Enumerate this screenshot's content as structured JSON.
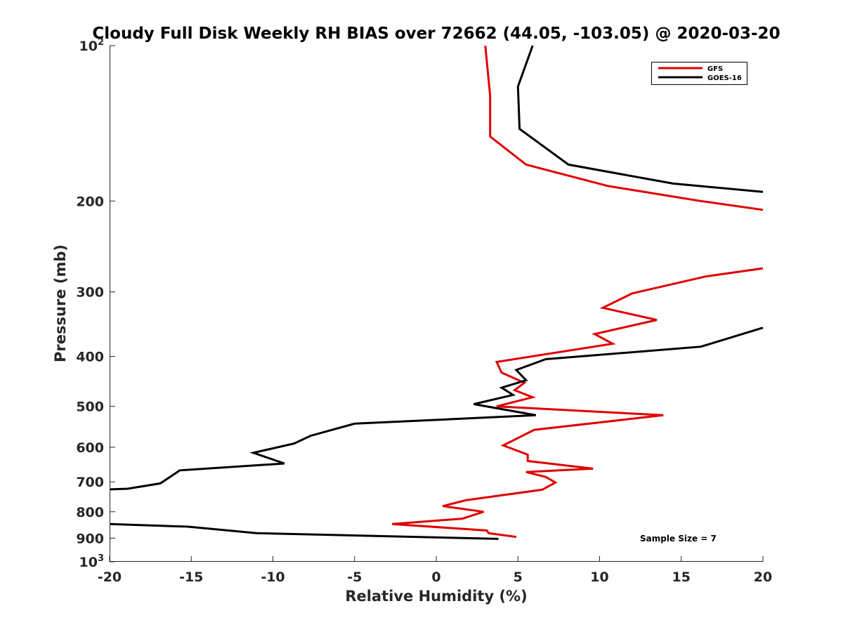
{
  "chart_data": {
    "type": "line",
    "title": "Cloudy Full Disk Weekly RH BIAS over 72662 (44.05, -103.05) @ 2020-03-20",
    "xlabel": "Relative Humidity (%)",
    "ylabel": "Pressure (mb)",
    "xlim": [
      -20,
      20
    ],
    "ylim": [
      100,
      1000
    ],
    "y_scale": "log",
    "y_reversed": true,
    "x_ticks": [
      "-20",
      "-15",
      "-10",
      "-5",
      "0",
      "5",
      "10",
      "15",
      "20"
    ],
    "y_ticks": [
      {
        "base": "10",
        "exp": "2"
      },
      {
        "base": "200",
        "exp": ""
      },
      {
        "base": "300",
        "exp": ""
      },
      {
        "base": "400",
        "exp": ""
      },
      {
        "base": "500",
        "exp": ""
      },
      {
        "base": "600",
        "exp": ""
      },
      {
        "base": "700",
        "exp": ""
      },
      {
        "base": "800",
        "exp": ""
      },
      {
        "base": "900",
        "exp": ""
      },
      {
        "base": "10",
        "exp": "3"
      }
    ],
    "grid": false,
    "legend_position": "top-right",
    "annotation": "Sample Size = 7",
    "series": [
      {
        "name": "GFS",
        "color": "#e00000",
        "points": [
          [
            3.0,
            100
          ],
          [
            3.3,
            125
          ],
          [
            3.3,
            150
          ],
          [
            5.5,
            170
          ],
          [
            10.5,
            187
          ],
          [
            16.2,
            200
          ],
          [
            20.0,
            208
          ],
          [
            null,
            null
          ],
          [
            20.0,
            270
          ],
          [
            16.5,
            280
          ],
          [
            12.0,
            302
          ],
          [
            10.2,
            322
          ],
          [
            13.5,
            340
          ],
          [
            9.7,
            362
          ],
          [
            10.8,
            378
          ],
          [
            3.7,
            410
          ],
          [
            4.0,
            430
          ],
          [
            5.4,
            450
          ],
          [
            4.8,
            465
          ],
          [
            5.9,
            480
          ],
          [
            3.7,
            500
          ],
          [
            13.9,
            520
          ],
          [
            6.0,
            555
          ],
          [
            4.1,
            595
          ],
          [
            5.6,
            620
          ],
          [
            5.6,
            638
          ],
          [
            9.6,
            660
          ],
          [
            5.5,
            670
          ],
          [
            6.7,
            685
          ],
          [
            7.3,
            702
          ],
          [
            6.5,
            725
          ],
          [
            1.8,
            760
          ],
          [
            0.4,
            780
          ],
          [
            2.9,
            800
          ],
          [
            1.6,
            825
          ],
          [
            -2.7,
            845
          ],
          [
            3.1,
            870
          ],
          [
            3.2,
            880
          ],
          [
            4.9,
            895
          ]
        ]
      },
      {
        "name": "GOES-16",
        "color": "#000000",
        "points": [
          [
            5.9,
            100
          ],
          [
            5.0,
            120
          ],
          [
            5.1,
            145
          ],
          [
            8.1,
            170
          ],
          [
            14.5,
            185
          ],
          [
            20.0,
            192
          ],
          [
            null,
            null
          ],
          [
            20.0,
            352
          ],
          [
            18.0,
            368
          ],
          [
            16.2,
            383
          ],
          [
            6.7,
            405
          ],
          [
            4.9,
            425
          ],
          [
            5.5,
            445
          ],
          [
            4.0,
            460
          ],
          [
            4.7,
            475
          ],
          [
            2.3,
            495
          ],
          [
            6.1,
            520
          ],
          [
            -5.0,
            540
          ],
          [
            -7.7,
            570
          ],
          [
            -8.7,
            590
          ],
          [
            -11.2,
            615
          ],
          [
            -9.3,
            645
          ],
          [
            -15.7,
            665
          ],
          [
            -16.3,
            685
          ],
          [
            -16.9,
            705
          ],
          [
            -18.9,
            722
          ],
          [
            -20.0,
            724
          ],
          [
            null,
            null
          ],
          [
            -20.0,
            845
          ],
          [
            -15.2,
            855
          ],
          [
            -11.0,
            880
          ],
          [
            3.8,
            903
          ]
        ]
      }
    ]
  }
}
